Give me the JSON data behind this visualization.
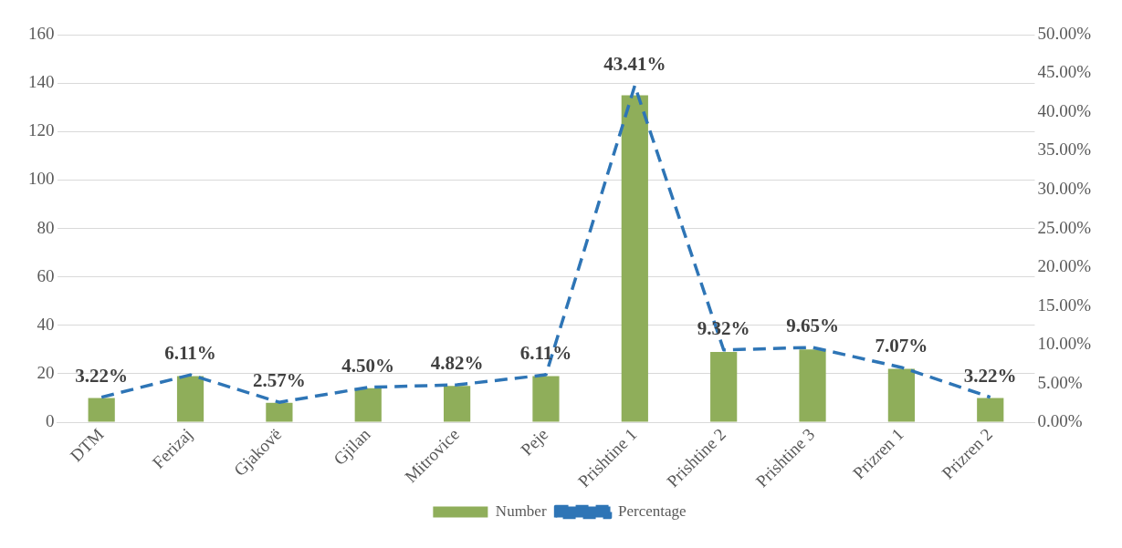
{
  "chart_data": {
    "type": "bar",
    "categories": [
      "DTM",
      "Ferizaj",
      "Gjakovë",
      "Gjilan",
      "Mitrovice",
      "Peje",
      "Prishtine 1",
      "Prishtine 2",
      "Prishtine 3",
      "Prizren 1",
      "Prizren 2"
    ],
    "series": [
      {
        "name": "Number",
        "color": "#8fae5a",
        "values": [
          10,
          19,
          8,
          14,
          15,
          19,
          135,
          29,
          30,
          22,
          10
        ]
      },
      {
        "name": "Percentage",
        "type": "line",
        "axis": "y2",
        "color": "#2e75b6",
        "line_style": "dashed",
        "values": [
          3.22,
          6.11,
          2.57,
          4.5,
          4.82,
          6.11,
          43.41,
          9.32,
          9.65,
          7.07,
          3.22
        ],
        "value_labels": [
          "3.22%",
          "6.11%",
          "2.57%",
          "4.50%",
          "4.82%",
          "6.11%",
          "43.41%",
          "9.32%",
          "9.65%",
          "7.07%",
          "3.22%"
        ]
      }
    ],
    "ylim": [
      0,
      160
    ],
    "yticks": [
      0,
      20,
      40,
      60,
      80,
      100,
      120,
      140,
      160
    ],
    "y2lim": [
      0,
      50
    ],
    "y2ticks": [
      {
        "value": 0,
        "label": "0.00%"
      },
      {
        "value": 5,
        "label": "5.00%"
      },
      {
        "value": 10,
        "label": "10.00%"
      },
      {
        "value": 15,
        "label": "15.00%"
      },
      {
        "value": 20,
        "label": "20.00%"
      },
      {
        "value": 25,
        "label": "25.00%"
      },
      {
        "value": 30,
        "label": "30.00%"
      },
      {
        "value": 35,
        "label": "35.00%"
      },
      {
        "value": 40,
        "label": "40.00%"
      },
      {
        "value": 45,
        "label": "45.00%"
      },
      {
        "value": 50,
        "label": "50.00%"
      }
    ],
    "grid": "y",
    "legend": "bottom"
  }
}
